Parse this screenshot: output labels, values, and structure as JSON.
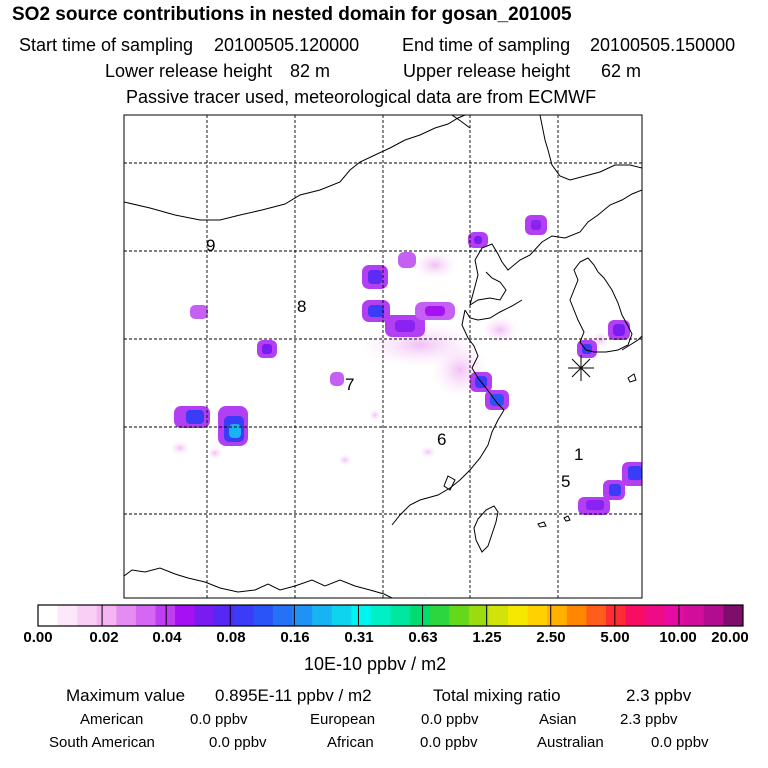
{
  "header": {
    "title": "SO2 source contributions in nested domain for gosan_201005",
    "start_label": "Start time of sampling",
    "start_value": "20100505.120000",
    "end_label": "End time of sampling",
    "end_value": "20100505.150000",
    "lower_label": "Lower release height",
    "lower_value": "82 m",
    "upper_label": "Upper release height",
    "upper_value": "62 m",
    "note": "Passive tracer used, meteorological data are from ECMWF"
  },
  "map": {
    "region_labels": [
      "9",
      "8",
      "7",
      "6",
      "1",
      "5"
    ],
    "station_marker": "gosan-station"
  },
  "colorbar": {
    "colors": [
      "#ffffff",
      "#fde8fb",
      "#f9cff6",
      "#f4b5f2",
      "#e58cf0",
      "#d468f2",
      "#bf3ef4",
      "#a511f2",
      "#7a1bf2",
      "#5528f5",
      "#3b3cf7",
      "#2a54f5",
      "#2672f6",
      "#1f92f5",
      "#17b3f3",
      "#0fd4f0",
      "#00f5ee",
      "#00f0c6",
      "#00e79f",
      "#00dc6f",
      "#2bd63f",
      "#64d81a",
      "#9bdc0f",
      "#d0e40a",
      "#f6e800",
      "#ffd100",
      "#ffb100",
      "#ff8800",
      "#ff5d1a",
      "#ff2d33",
      "#f70e62",
      "#f00b86",
      "#e60ba2",
      "#d10d9a",
      "#b30d8f",
      "#7f0d6b"
    ],
    "tick_labels": [
      "0.00",
      "0.02",
      "0.04",
      "0.08",
      "0.16",
      "0.31",
      "0.63",
      "1.25",
      "2.50",
      "5.00",
      "10.00",
      "20.00"
    ],
    "unit": "10E-10 ppbv / m2"
  },
  "summary": {
    "max_label": "Maximum value",
    "max_value": "0.895E-11 ppbv / m2",
    "total_label": "Total mixing ratio",
    "total_value": "2.3 ppbv",
    "regions": [
      {
        "name": "American",
        "value": "0.0 ppbv"
      },
      {
        "name": "European",
        "value": "0.0 ppbv"
      },
      {
        "name": "Asian",
        "value": "2.3 ppbv"
      },
      {
        "name": "South American",
        "value": "0.0 ppbv"
      },
      {
        "name": "African",
        "value": "0.0 ppbv"
      },
      {
        "name": "Australian",
        "value": "0.0 ppbv"
      }
    ]
  }
}
